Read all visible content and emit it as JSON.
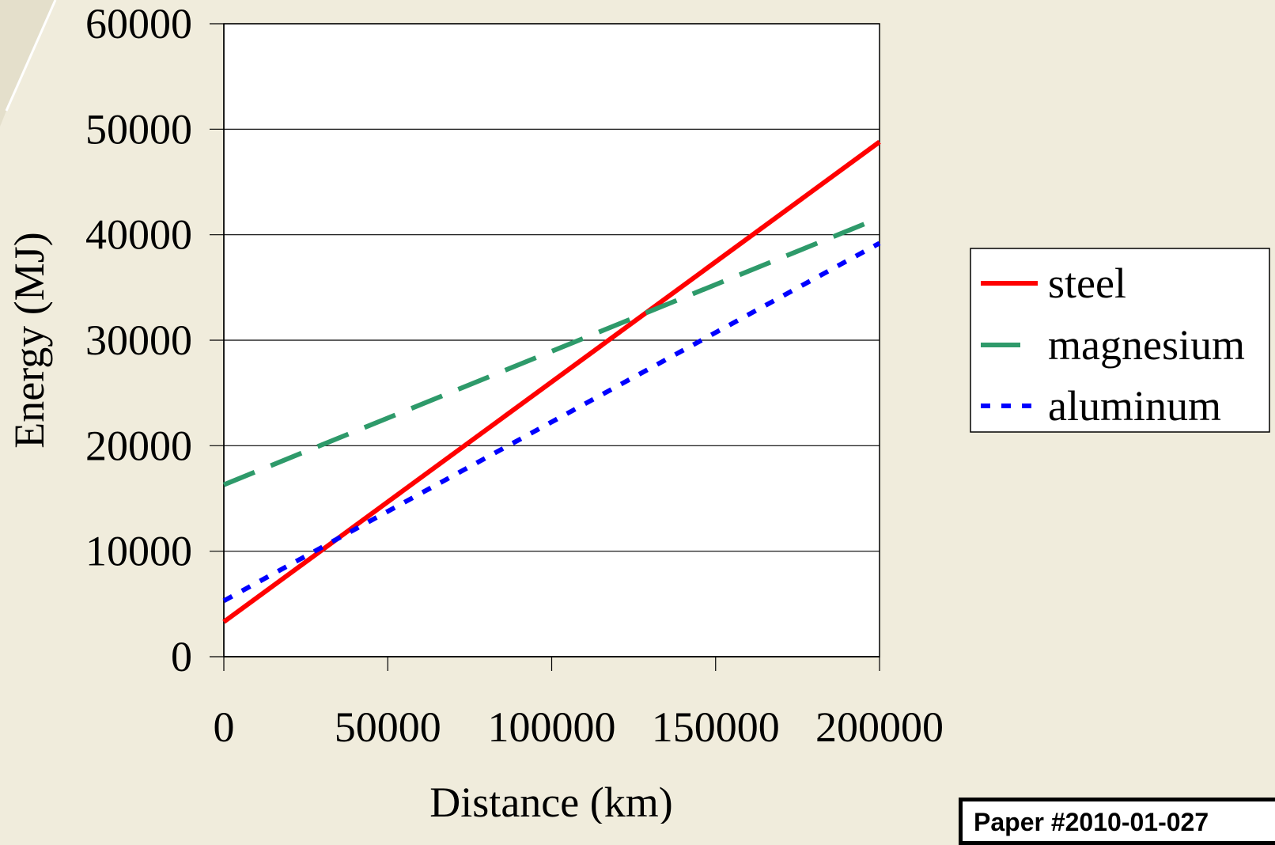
{
  "chart_data": {
    "type": "line",
    "title": "",
    "xlabel": "Distance (km)",
    "ylabel": "Energy (MJ)",
    "xlim": [
      0,
      200000
    ],
    "ylim": [
      0,
      60000
    ],
    "x_ticks": [
      "0",
      "50000",
      "100000",
      "150000",
      "200000"
    ],
    "y_ticks": [
      "0",
      "10000",
      "20000",
      "30000",
      "40000",
      "50000",
      "60000"
    ],
    "grid": "horizontal",
    "legend_position": "right",
    "series": [
      {
        "name": "steel",
        "color": "#ff0000",
        "style": "solid",
        "x": [
          0,
          200000
        ],
        "y": [
          3300,
          48800
        ]
      },
      {
        "name": "magnesium",
        "color": "#2e9a6a",
        "style": "dashed",
        "x": [
          0,
          200000
        ],
        "y": [
          16300,
          41600
        ]
      },
      {
        "name": "aluminum",
        "color": "#0000ff",
        "style": "dotted",
        "x": [
          0,
          200000
        ],
        "y": [
          5300,
          39200
        ]
      }
    ]
  },
  "footer": {
    "paper_label": "Paper #2010-01-027"
  }
}
